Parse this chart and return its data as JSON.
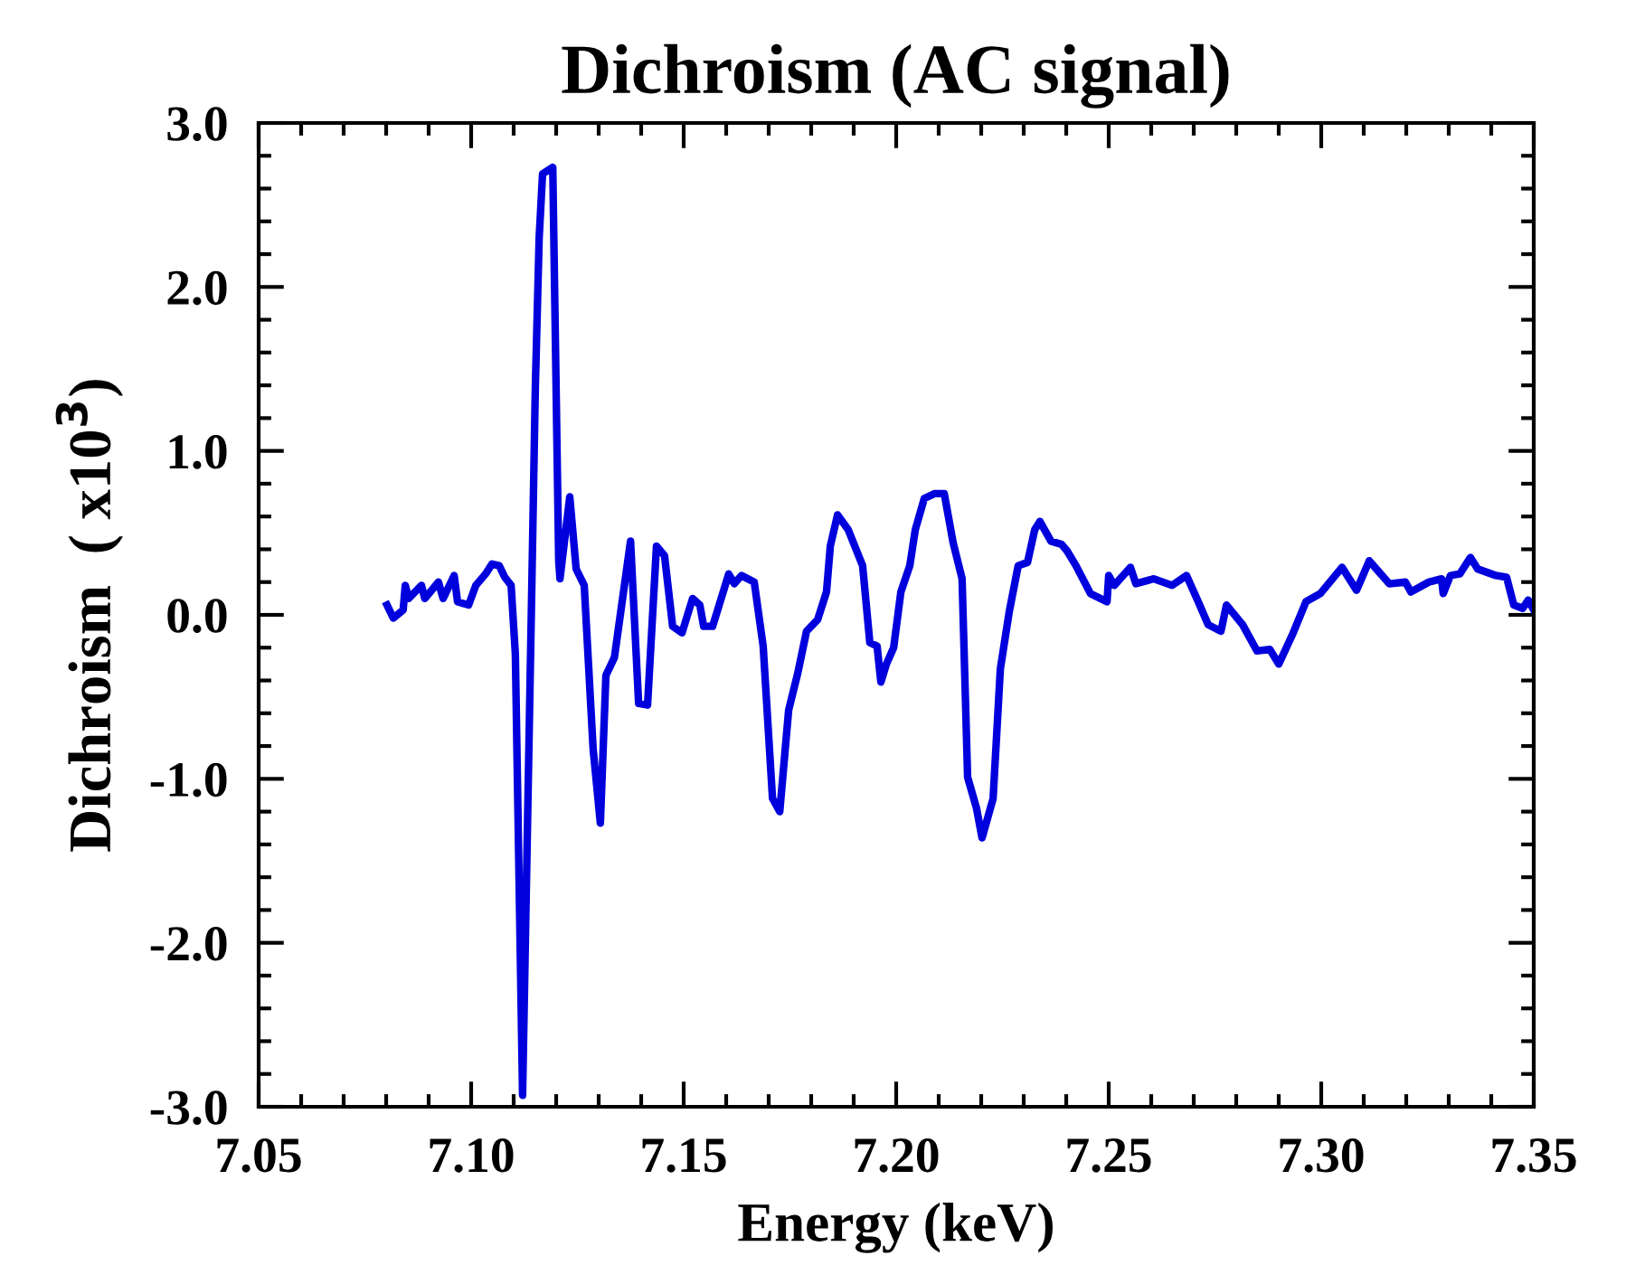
{
  "chart_data": {
    "type": "line",
    "title": "Dichroism (AC signal)",
    "xlabel": "Energy (keV)",
    "ylabel": "Dichroism  ( x10$^{3}$)",
    "xlim": [
      7.05,
      7.35
    ],
    "ylim": [
      -3.0,
      3.0
    ],
    "xticks": [
      {
        "value": 7.05,
        "label": "7.05"
      },
      {
        "value": 7.1,
        "label": "7.10"
      },
      {
        "value": 7.15,
        "label": "7.15"
      },
      {
        "value": 7.2,
        "label": "7.20"
      },
      {
        "value": 7.25,
        "label": "7.25"
      },
      {
        "value": 7.3,
        "label": "7.30"
      },
      {
        "value": 7.35,
        "label": "7.35"
      }
    ],
    "yticks": [
      {
        "value": -3,
        "label": "-3.0"
      },
      {
        "value": -2,
        "label": "-2.0"
      },
      {
        "value": -1,
        "label": "-1.0"
      },
      {
        "value": 0,
        "label": "0.0"
      },
      {
        "value": 1,
        "label": "1.0"
      },
      {
        "value": 2,
        "label": "2.0"
      },
      {
        "value": 3,
        "label": "3.0"
      }
    ],
    "grid": false,
    "marker": "none",
    "line_style": "solid",
    "series": [
      {
        "color": "#0000dd",
        "x": [
          7.0802,
          7.0817,
          7.084,
          7.0845,
          7.0853,
          7.0883,
          7.0891,
          7.0923,
          7.0934,
          7.096,
          7.0968,
          7.0994,
          7.1011,
          7.1034,
          7.1049,
          7.1066,
          7.1079,
          7.1094,
          7.1104,
          7.1121,
          7.1141,
          7.1151,
          7.116,
          7.1168,
          7.1192,
          7.1206,
          7.1209,
          7.1232,
          7.1247,
          7.1266,
          7.1287,
          7.1304,
          7.1317,
          7.1337,
          7.1375,
          7.1394,
          7.1415,
          7.1436,
          7.1455,
          7.1474,
          7.1496,
          7.1521,
          7.1538,
          7.1547,
          7.1568,
          7.1606,
          7.1619,
          7.1636,
          7.1666,
          7.1687,
          7.1709,
          7.1726,
          7.1747,
          7.1768,
          7.1789,
          7.1815,
          7.1836,
          7.1845,
          7.1862,
          7.1887,
          7.1921,
          7.1938,
          7.1955,
          7.1964,
          7.1977,
          7.1994,
          7.2011,
          7.2032,
          7.2045,
          7.2066,
          7.2091,
          7.2113,
          7.2134,
          7.2155,
          7.2168,
          7.2189,
          7.2202,
          7.2228,
          7.2245,
          7.2266,
          7.2287,
          7.2309,
          7.2326,
          7.2338,
          7.2364,
          7.2389,
          7.2402,
          7.2423,
          7.2457,
          7.2496,
          7.25,
          7.2513,
          7.2551,
          7.2564,
          7.2606,
          7.2649,
          7.2683,
          7.2709,
          7.2734,
          7.2764,
          7.2777,
          7.2815,
          7.2849,
          7.2879,
          7.29,
          7.2934,
          7.2964,
          7.2998,
          7.3049,
          7.3083,
          7.3113,
          7.316,
          7.3198,
          7.3211,
          7.3253,
          7.3283,
          7.3287,
          7.3304,
          7.3326,
          7.3351,
          7.3368,
          7.3411,
          7.3436,
          7.3453,
          7.3474,
          7.3487,
          7.35
        ],
        "values": [
          0.06,
          -0.02,
          0.03,
          0.18,
          0.1,
          0.18,
          0.1,
          0.2,
          0.1,
          0.24,
          0.08,
          0.06,
          0.18,
          0.25,
          0.31,
          0.3,
          0.23,
          0.18,
          -0.24,
          -2.93,
          -0.07,
          1.39,
          2.3,
          2.69,
          2.73,
          0.33,
          0.22,
          0.72,
          0.28,
          0.18,
          -0.82,
          -1.27,
          -0.37,
          -0.26,
          0.45,
          -0.54,
          -0.55,
          0.42,
          0.36,
          -0.07,
          -0.11,
          0.1,
          0.06,
          -0.07,
          -0.07,
          0.25,
          0.19,
          0.24,
          0.2,
          -0.19,
          -1.12,
          -1.2,
          -0.58,
          -0.36,
          -0.1,
          -0.03,
          0.14,
          0.42,
          0.61,
          0.52,
          0.3,
          -0.17,
          -0.19,
          -0.41,
          -0.3,
          -0.2,
          0.14,
          0.3,
          0.52,
          0.71,
          0.74,
          0.74,
          0.44,
          0.22,
          -0.99,
          -1.18,
          -1.36,
          -1.12,
          -0.33,
          0.02,
          0.3,
          0.32,
          0.52,
          0.57,
          0.45,
          0.43,
          0.39,
          0.3,
          0.13,
          0.08,
          0.24,
          0.18,
          0.29,
          0.19,
          0.22,
          0.18,
          0.24,
          0.09,
          -0.06,
          -0.1,
          0.06,
          -0.06,
          -0.22,
          -0.21,
          -0.3,
          -0.11,
          0.08,
          0.13,
          0.29,
          0.15,
          0.33,
          0.19,
          0.2,
          0.14,
          0.2,
          0.22,
          0.13,
          0.24,
          0.25,
          0.35,
          0.28,
          0.24,
          0.23,
          0.06,
          0.04,
          0.09,
          0.03
        ]
      }
    ]
  }
}
